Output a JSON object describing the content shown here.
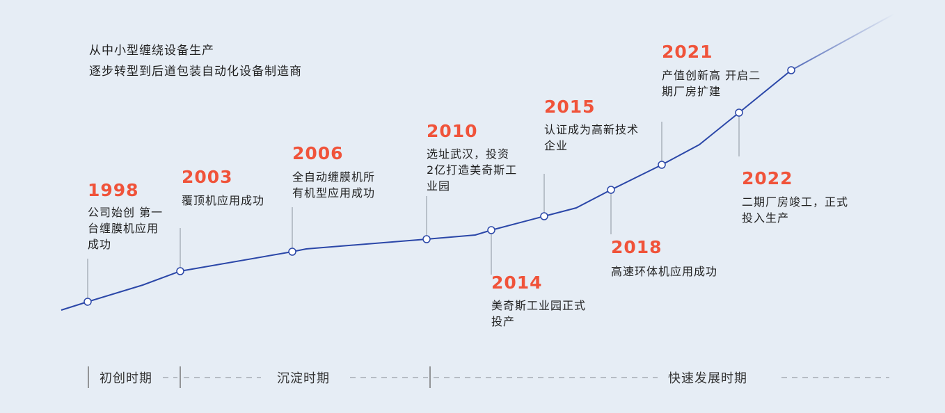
{
  "intro": [
    "从中小型缠绕设备生产",
    "逐步转型到后道包装自动化设备制造商"
  ],
  "colors": {
    "line": "#2b47a8",
    "year": "#f0533a",
    "background": "#e6edf5"
  },
  "events": [
    {
      "year": "1998",
      "desc": [
        "公司始创 第一",
        "台缠膜机应用",
        "成功"
      ]
    },
    {
      "year": "2003",
      "desc": [
        "覆顶机应用成功"
      ]
    },
    {
      "year": "2006",
      "desc": [
        "全自动缠膜机所",
        "有机型应用成功"
      ]
    },
    {
      "year": "2010",
      "desc": [
        "选址武汉，投资",
        "2亿打造美奇斯工",
        "业园"
      ]
    },
    {
      "year": "2014",
      "desc": [
        "美奇斯工业园正式",
        "投产"
      ]
    },
    {
      "year": "2015",
      "desc": [
        "认证成为高新技术",
        "企业"
      ]
    },
    {
      "year": "2018",
      "desc": [
        "高速环体机应用成功"
      ]
    },
    {
      "year": "2021",
      "desc": [
        "产值创新高 开启二",
        "期厂房扩建"
      ]
    },
    {
      "year": "2022",
      "desc": [
        "二期厂房竣工，正式",
        "投入生产"
      ]
    }
  ],
  "periods": [
    "初创时期",
    "沉淀时期",
    "快速发展时期"
  ]
}
